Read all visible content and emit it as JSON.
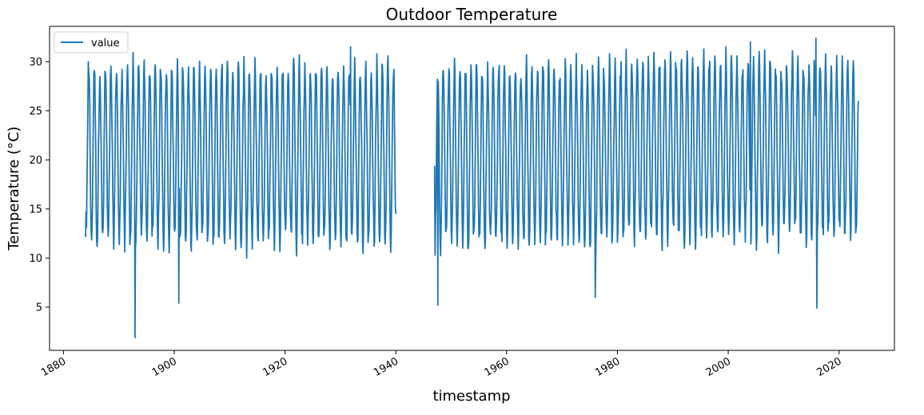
{
  "chart_data": {
    "type": "line",
    "title": "Outdoor Temperature",
    "xlabel": "timestamp",
    "ylabel": "Temperature (°C)",
    "xlim": [
      1877.5,
      2030.0
    ],
    "ylim": [
      0.6,
      33.6
    ],
    "x_ticks": [
      1880,
      1900,
      1920,
      1940,
      1960,
      1980,
      2000,
      2020
    ],
    "x_tick_labels": [
      "1880",
      "1900",
      "1920",
      "1940",
      "1960",
      "1980",
      "2000",
      "2020"
    ],
    "y_ticks": [
      5,
      10,
      15,
      20,
      25,
      30
    ],
    "y_tick_labels": [
      "5",
      "10",
      "15",
      "20",
      "25",
      "30"
    ],
    "grid": false,
    "legend": {
      "position": "top-left",
      "entries": [
        "value"
      ]
    },
    "series": [
      {
        "name": "value",
        "color": "#1f77b4",
        "description": "monthly mean temperature, strong annual cycle between winter minima (~8–14 °C) and summer maxima (~28–32 °C), gap 1940–1947",
        "segments": [
          {
            "x_start": 1884.0,
            "x_end": 1940.0
          },
          {
            "x_start": 1947.0,
            "x_end": 2023.5
          }
        ],
        "notable_points": [
          {
            "x": 1884.1,
            "y": 14.7
          },
          {
            "x": 1884.5,
            "y": 30.0
          },
          {
            "x": 1892.9,
            "y": 1.9
          },
          {
            "x": 1900.8,
            "y": 5.4
          },
          {
            "x": 1931.8,
            "y": 31.5
          },
          {
            "x": 1940.0,
            "y": 14.5
          },
          {
            "x": 1947.0,
            "y": 19.4
          },
          {
            "x": 1947.6,
            "y": 5.2
          },
          {
            "x": 1976.0,
            "y": 6.0
          },
          {
            "x": 2004.0,
            "y": 32.0
          },
          {
            "x": 2015.8,
            "y": 32.4
          },
          {
            "x": 2016.0,
            "y": 4.9
          },
          {
            "x": 2023.5,
            "y": 26.0
          }
        ]
      }
    ]
  }
}
